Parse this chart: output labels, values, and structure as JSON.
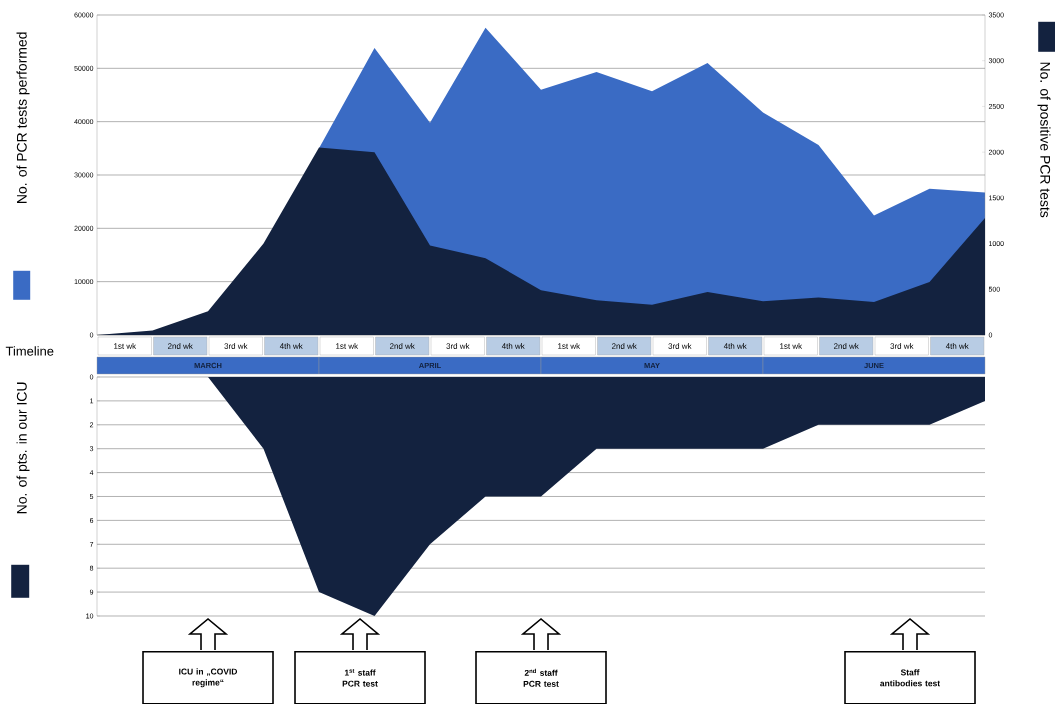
{
  "chart_data": [
    {
      "type": "area",
      "categories": [
        null,
        null,
        null,
        null,
        null,
        null,
        null,
        null,
        null,
        null,
        null,
        null,
        null,
        null,
        null,
        null,
        null
      ],
      "ylabel": "No. of PCR tests performed",
      "y2label": "No. of positive PCR tests",
      "ylim": [
        0,
        60000
      ],
      "yticks": [
        0,
        10000,
        20000,
        30000,
        40000,
        50000,
        60000
      ],
      "y2lim": [
        0,
        3500
      ],
      "y2ticks": [
        0,
        500,
        1000,
        1500,
        2000,
        2500,
        3000,
        3500
      ],
      "grid": "y",
      "tick_labels": "y",
      "annotations": [
        "Timeline",
        "1st wk",
        "2nd wk",
        "3rd wk",
        "4th wk",
        "1st wk",
        "2nd wk",
        "3rd wk",
        "4th wk",
        "1st wk",
        "2nd wk",
        "3rd wk",
        "4th wk",
        "1st wk",
        "2nd wk",
        "3rd wk",
        "4th wk",
        "MARCH",
        "APRIL",
        "MAY",
        "JUNE"
      ],
      "series": [
        {
          "color": "#3a6bc4",
          "values": [
            null,
            null,
            null,
            null,
            35000,
            53800,
            39800,
            57600,
            46000,
            49300,
            45700,
            51000,
            41700,
            35600,
            22400,
            27400,
            26700
          ]
        },
        {
          "color": "#13223f",
          "axis": "y2",
          "values": [
            0,
            50,
            260,
            1000,
            2050,
            2000,
            980,
            840,
            490,
            380,
            330,
            470,
            370,
            410,
            360,
            580,
            1280
          ]
        }
      ]
    },
    {
      "type": "area",
      "categories": [
        null,
        null,
        null,
        null,
        null,
        null,
        null,
        null,
        null,
        null,
        null,
        null,
        null,
        null,
        null,
        null,
        null
      ],
      "ylabel": "No. of pts. in our ICU",
      "ylim": [
        10,
        0
      ],
      "yticks": [
        0,
        1,
        2,
        3,
        4,
        5,
        6,
        7,
        8,
        9,
        10
      ],
      "grid": "y",
      "tick_labels": "y",
      "annotations": [
        "ICU in „COVID regime“",
        "1$^{st}$ staff PCR test",
        "2$^{nd}$ staff PCR test",
        "Staff antibodies test"
      ],
      "series": [
        {
          "color": "#13223f",
          "values": [
            0,
            0,
            0,
            3,
            9,
            10,
            7,
            5,
            5,
            3,
            3,
            3,
            3,
            2,
            2,
            2,
            1
          ]
        }
      ]
    }
  ]
}
